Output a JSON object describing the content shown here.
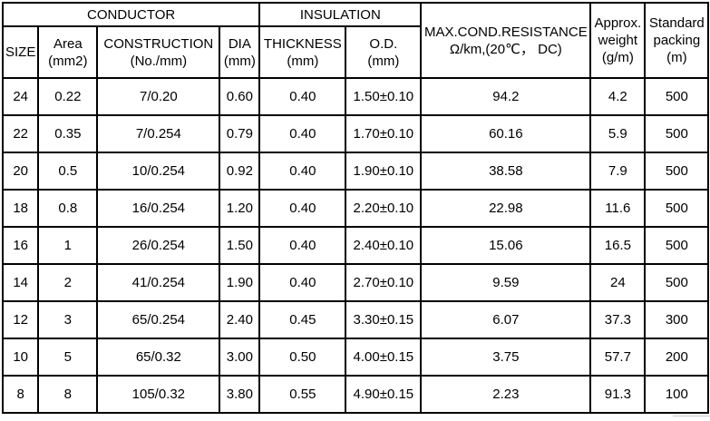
{
  "table": {
    "header": {
      "group_conductor": "CONDUCTOR",
      "group_insulation": "INSULATION",
      "size": "SIZE",
      "area_line1": "Area",
      "area_line2": "(mm2)",
      "construction_line1": "CONSTRUCTION",
      "construction_line2": "(No./mm)",
      "dia_line1": "DIA",
      "dia_line2": "(mm)",
      "thickness_line1": "THICKNESS",
      "thickness_line2": "(mm)",
      "od_line1": "O.D.",
      "od_line2": "(mm)",
      "resistance_line1": "MAX.COND.RESISTANCE",
      "resistance_line2": "Ω/km,(20℃， DC)",
      "weight_line1": "Approx.",
      "weight_line2": "weight",
      "weight_line3": "(g/m)",
      "packing_line1": "Standard",
      "packing_line2": "packing",
      "packing_line3": "(m)"
    },
    "rows": [
      [
        "24",
        "0.22",
        "7/0.20",
        "0.60",
        "0.40",
        "1.50±0.10",
        "94.2",
        "4.2",
        "500"
      ],
      [
        "22",
        "0.35",
        "7/0.254",
        "0.79",
        "0.40",
        "1.70±0.10",
        "60.16",
        "5.9",
        "500"
      ],
      [
        "20",
        "0.5",
        "10/0.254",
        "0.92",
        "0.40",
        "1.90±0.10",
        "38.58",
        "7.9",
        "500"
      ],
      [
        "18",
        "0.8",
        "16/0.254",
        "1.20",
        "0.40",
        "2.20±0.10",
        "22.98",
        "11.6",
        "500"
      ],
      [
        "16",
        "1",
        "26/0.254",
        "1.50",
        "0.40",
        "2.40±0.10",
        "15.06",
        "16.5",
        "500"
      ],
      [
        "14",
        "2",
        "41/0.254",
        "1.90",
        "0.40",
        "2.70±0.10",
        "9.59",
        "24",
        "500"
      ],
      [
        "12",
        "3",
        "65/0.254",
        "2.40",
        "0.45",
        "3.30±0.15",
        "6.07",
        "37.3",
        "300"
      ],
      [
        "10",
        "5",
        "65/0.32",
        "3.00",
        "0.50",
        "4.00±0.15",
        "3.75",
        "57.7",
        "200"
      ],
      [
        "8",
        "8",
        "105/0.32",
        "3.80",
        "0.55",
        "4.90±0.15",
        "2.23",
        "91.3",
        "100"
      ]
    ],
    "colors": {
      "border": "#000000",
      "text": "#000000",
      "background": "#ffffff"
    }
  }
}
